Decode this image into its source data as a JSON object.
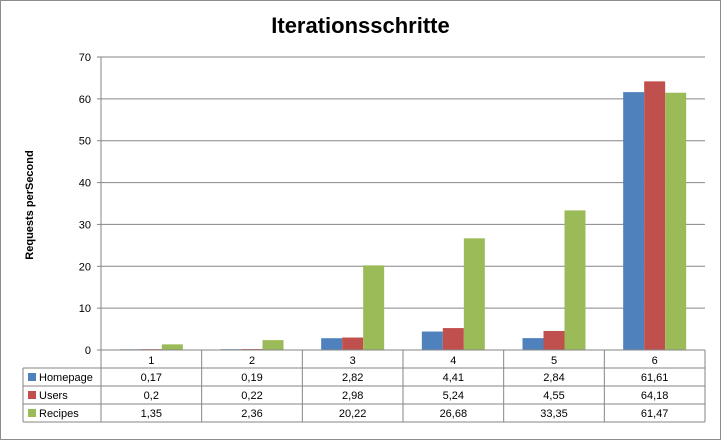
{
  "chart_data": {
    "type": "bar",
    "title": "Iterationsschritte",
    "xlabel": "",
    "ylabel": "Requests perSecond",
    "ylim": [
      0,
      70
    ],
    "yticks": [
      "0",
      "10",
      "20",
      "30",
      "40",
      "50",
      "60",
      "70"
    ],
    "grid": true,
    "legend": "data-table",
    "categories": [
      "1",
      "2",
      "3",
      "4",
      "5",
      "6"
    ],
    "series": [
      {
        "name": "Homepage",
        "color": "#4f81bd",
        "values": [
          0.17,
          0.19,
          2.82,
          4.41,
          2.84,
          61.61
        ],
        "labels": [
          "0,17",
          "0,19",
          "2,82",
          "4,41",
          "2,84",
          "61,61"
        ]
      },
      {
        "name": "Users",
        "color": "#c0504d",
        "values": [
          0.2,
          0.22,
          2.98,
          5.24,
          4.55,
          64.18
        ],
        "labels": [
          "0,2",
          "0,22",
          "2,98",
          "5,24",
          "4,55",
          "64,18"
        ]
      },
      {
        "name": "Recipes",
        "color": "#9bbb59",
        "values": [
          1.35,
          2.36,
          20.22,
          26.68,
          33.35,
          61.47
        ],
        "labels": [
          "1,35",
          "2,36",
          "20,22",
          "26,68",
          "33,35",
          "61,47"
        ]
      }
    ]
  }
}
